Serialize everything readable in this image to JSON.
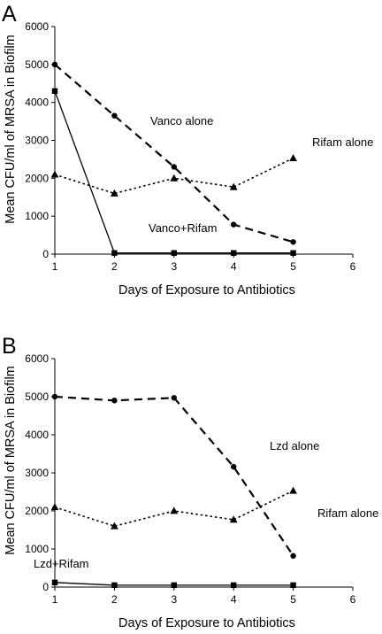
{
  "chart_data": [
    {
      "panel": "A",
      "type": "line",
      "xlabel": "Days of Exposure to Antibiotics",
      "ylabel": "Mean CFU/ml of MRSA in Biofilm",
      "xlim": [
        1,
        6
      ],
      "ylim": [
        0,
        6000
      ],
      "xticks": [
        1,
        2,
        3,
        4,
        5,
        6
      ],
      "yticks": [
        0,
        1000,
        2000,
        3000,
        4000,
        5000,
        6000
      ],
      "grid": false,
      "series": [
        {
          "name": "Vanco alone",
          "line": "long-dash",
          "marker": "circle",
          "points": [
            [
              1,
              5000
            ],
            [
              2,
              3650
            ],
            [
              3,
              2300
            ],
            [
              4,
              780
            ],
            [
              5,
              320
            ]
          ]
        },
        {
          "name": "Rifam alone",
          "line": "dotted",
          "marker": "triangle",
          "points": [
            [
              1,
              2100
            ],
            [
              2,
              1600
            ],
            [
              3,
              2000
            ],
            [
              4,
              1770
            ],
            [
              5,
              2530
            ]
          ]
        },
        {
          "name": "Vanco+Rifam",
          "line": "solid",
          "marker": "square",
          "points": [
            [
              1,
              4300
            ],
            [
              2,
              30
            ],
            [
              3,
              30
            ],
            [
              4,
              30
            ],
            [
              5,
              30
            ]
          ]
        }
      ]
    },
    {
      "panel": "B",
      "type": "line",
      "xlabel": "Days of Exposure to Antibiotics",
      "ylabel": "Mean CFU/ml of MRSA in Biofilm",
      "xlim": [
        1,
        6
      ],
      "ylim": [
        0,
        6000
      ],
      "xticks": [
        1,
        2,
        3,
        4,
        5,
        6
      ],
      "yticks": [
        0,
        1000,
        2000,
        3000,
        4000,
        5000,
        6000
      ],
      "grid": false,
      "series": [
        {
          "name": "Lzd alone",
          "line": "long-dash",
          "marker": "circle",
          "points": [
            [
              1,
              5000
            ],
            [
              2,
              4900
            ],
            [
              3,
              4970
            ],
            [
              4,
              3160
            ],
            [
              5,
              820
            ]
          ]
        },
        {
          "name": "Rifam alone",
          "line": "dotted",
          "marker": "triangle",
          "points": [
            [
              1,
              2100
            ],
            [
              2,
              1600
            ],
            [
              3,
              2000
            ],
            [
              4,
              1770
            ],
            [
              5,
              2530
            ]
          ]
        },
        {
          "name": "Lzd+Rifam",
          "line": "solid",
          "marker": "square",
          "points": [
            [
              1,
              120
            ],
            [
              2,
              50
            ],
            [
              3,
              50
            ],
            [
              4,
              50
            ],
            [
              5,
              50
            ]
          ]
        }
      ]
    }
  ]
}
